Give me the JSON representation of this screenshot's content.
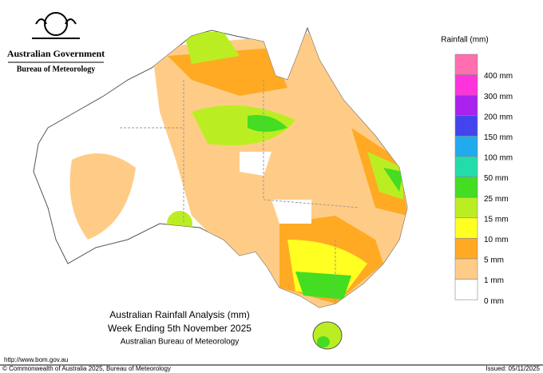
{
  "header": {
    "government": "Australian Government",
    "agency": "Bureau of Meteorology"
  },
  "legend": {
    "title": "Rainfall (mm)",
    "items": [
      {
        "label": "400 mm",
        "color": "#ff6fb0"
      },
      {
        "label": "300 mm",
        "color": "#ff33dd"
      },
      {
        "label": "200 mm",
        "color": "#aa22ee"
      },
      {
        "label": "150 mm",
        "color": "#4444ee"
      },
      {
        "label": "100 mm",
        "color": "#22aaee"
      },
      {
        "label": "50 mm",
        "color": "#22ddaa"
      },
      {
        "label": "25 mm",
        "color": "#44dd22"
      },
      {
        "label": "15 mm",
        "color": "#bbee22"
      },
      {
        "label": "10 mm",
        "color": "#ffff22"
      },
      {
        "label": "5 mm",
        "color": "#ffaa22"
      },
      {
        "label": "1 mm",
        "color": "#ffcc88"
      },
      {
        "label": "0 mm",
        "color": "#ffffff"
      }
    ]
  },
  "map_title": {
    "line1": "Australian Rainfall Analysis (mm)",
    "line2": "Week Ending 5th November 2025",
    "line3": "Australian Bureau of Meteorology"
  },
  "footer": {
    "url": "http://www.bom.gov.au",
    "copyright": "© Commonwealth of Australia 2025, Bureau of Meteorology",
    "issued": "Issued: 05/11/2025"
  }
}
